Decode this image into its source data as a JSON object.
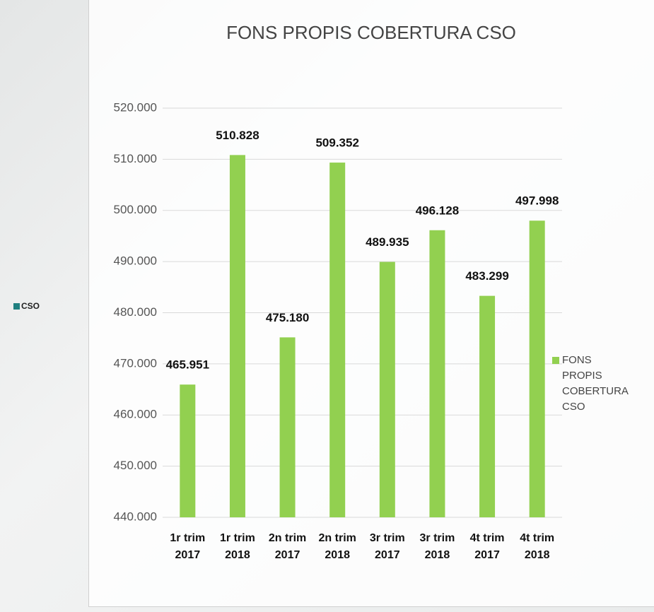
{
  "chart_data": {
    "type": "bar",
    "title": "FONS PROPIS COBERTURA CSO",
    "side_label": "CSO",
    "side_label_color": "#1f7f7f",
    "categories": [
      "1r trim 2017",
      "1r trim 2018",
      "2n trim 2017",
      "2n trim 2018",
      "3r trim 2017",
      "3r trim 2018",
      "4t trim 2017",
      "4t trim 2018"
    ],
    "series": [
      {
        "name": "FONS PROPIS COBERTURA CSO",
        "color": "#92d050",
        "values": [
          465951,
          510828,
          475180,
          509352,
          489935,
          496128,
          483299,
          497998
        ],
        "value_labels": [
          "465.951",
          "510.828",
          "475.180",
          "509.352",
          "489.935",
          "496.128",
          "483.299",
          "497.998"
        ]
      }
    ],
    "ylim": [
      440000,
      520000
    ],
    "yticks": [
      {
        "value": 440000,
        "label": "440.000"
      },
      {
        "value": 450000,
        "label": "450.000"
      },
      {
        "value": 460000,
        "label": "460.000"
      },
      {
        "value": 470000,
        "label": "470.000"
      },
      {
        "value": 480000,
        "label": "480.000"
      },
      {
        "value": 490000,
        "label": "490.000"
      },
      {
        "value": 500000,
        "label": "500.000"
      },
      {
        "value": 510000,
        "label": "510.000"
      },
      {
        "value": 520000,
        "label": "520.000"
      }
    ],
    "grid": true,
    "legend": "right"
  }
}
